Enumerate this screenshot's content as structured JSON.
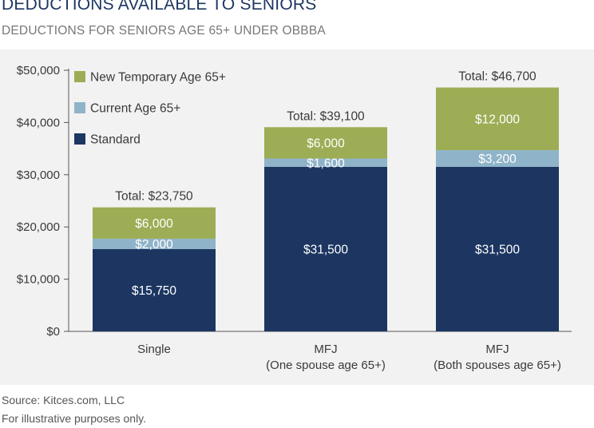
{
  "header": {
    "title": "DEDUCTIONS AVAILABLE TO SENIORS",
    "subtitle": "DEDUCTIONS FOR SENIORS AGE 65+ UNDER OBBBA"
  },
  "footer": {
    "source": "Source: Kitces.com, LLC",
    "note": "For illustrative purposes only."
  },
  "chart_data": {
    "type": "bar",
    "stacked": true,
    "categories": [
      [
        "Single"
      ],
      [
        "MFJ",
        "(One spouse age 65+)"
      ],
      [
        "MFJ",
        "(Both spouses age 65+)"
      ]
    ],
    "series": [
      {
        "name": "Standard",
        "color": "#1c3661",
        "values": [
          15750,
          31500,
          31500
        ],
        "labels": [
          "$15,750",
          "$31,500",
          "$31,500"
        ]
      },
      {
        "name": "Current Age 65+",
        "color": "#8fb3c9",
        "values": [
          2000,
          1600,
          3200
        ],
        "labels": [
          "$2,000",
          "$1,600",
          "$3,200"
        ]
      },
      {
        "name": "New Temporary Age 65+",
        "color": "#9cad55",
        "values": [
          6000,
          6000,
          12000
        ],
        "labels": [
          "$6,000",
          "$6,000",
          "$12,000"
        ]
      }
    ],
    "totals": [
      "Total: $23,750",
      "Total: $39,100",
      "Total: $46,700"
    ],
    "ylim": [
      0,
      50000
    ],
    "yticks": [
      0,
      10000,
      20000,
      30000,
      40000,
      50000
    ],
    "ytick_labels": [
      "$0",
      "$10,000",
      "$20,000",
      "$30,000",
      "$40,000",
      "$50,000"
    ],
    "grid": false,
    "legend_position": "top-left"
  }
}
